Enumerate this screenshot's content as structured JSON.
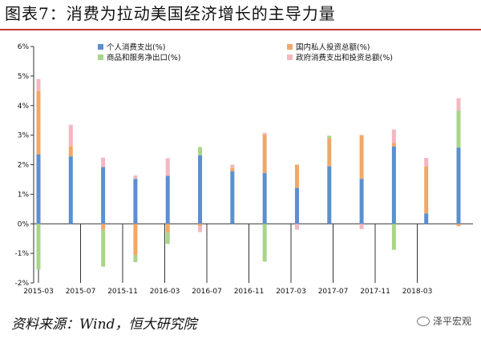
{
  "header": {
    "title": "图表7：消费为拉动美国经济增长的主导力量"
  },
  "footer": {
    "source": "资料来源：Wind，恒大研究院",
    "brand": "泽平宏观"
  },
  "colors": {
    "consumption": "#5b8fd0",
    "investment": "#f0a868",
    "net_exports": "#a8d58a",
    "government": "#f3b7c0",
    "accent": "#c0392b"
  },
  "chart_data": {
    "type": "bar",
    "stacked": true,
    "x_tick_labels": [
      "2015-03",
      "2015-07",
      "2015-11",
      "2016-03",
      "2016-07",
      "2016-11",
      "2017-03",
      "2017-07",
      "2017-11",
      "2018-03"
    ],
    "y_tick_labels": [
      "-2%",
      "-1%",
      "0%",
      "1%",
      "2%",
      "3%",
      "4%",
      "5%",
      "6%"
    ],
    "ylim": [
      -2,
      6
    ],
    "legend_placement": "top",
    "series": [
      {
        "name": "个人消费支出(%)",
        "color": "#5b8fd0",
        "values": [
          2.35,
          2.28,
          1.92,
          1.52,
          1.62,
          2.32,
          1.78,
          1.72,
          1.22,
          1.95,
          1.52,
          2.62,
          0.35,
          2.58
        ]
      },
      {
        "name": "国内私人投资总额(%)",
        "color": "#f0a868",
        "values": [
          2.15,
          0.35,
          -0.2,
          -1.05,
          -0.3,
          -0.08,
          0.1,
          1.3,
          0.78,
          0.95,
          1.48,
          0.12,
          1.6,
          -0.08
        ]
      },
      {
        "name": "商品和服务净出口(%)",
        "color": "#a8d58a",
        "values": [
          -1.55,
          0.0,
          -1.25,
          -0.25,
          -0.38,
          0.28,
          0.0,
          -1.28,
          0.0,
          0.08,
          0.0,
          -0.88,
          0.0,
          1.25
        ]
      },
      {
        "name": "政府消费支出和投资总额(%)",
        "color": "#f3b7c0",
        "values": [
          0.4,
          0.72,
          0.32,
          0.12,
          0.6,
          -0.2,
          0.12,
          0.06,
          -0.2,
          0.0,
          -0.18,
          0.45,
          0.28,
          0.42
        ]
      }
    ]
  }
}
